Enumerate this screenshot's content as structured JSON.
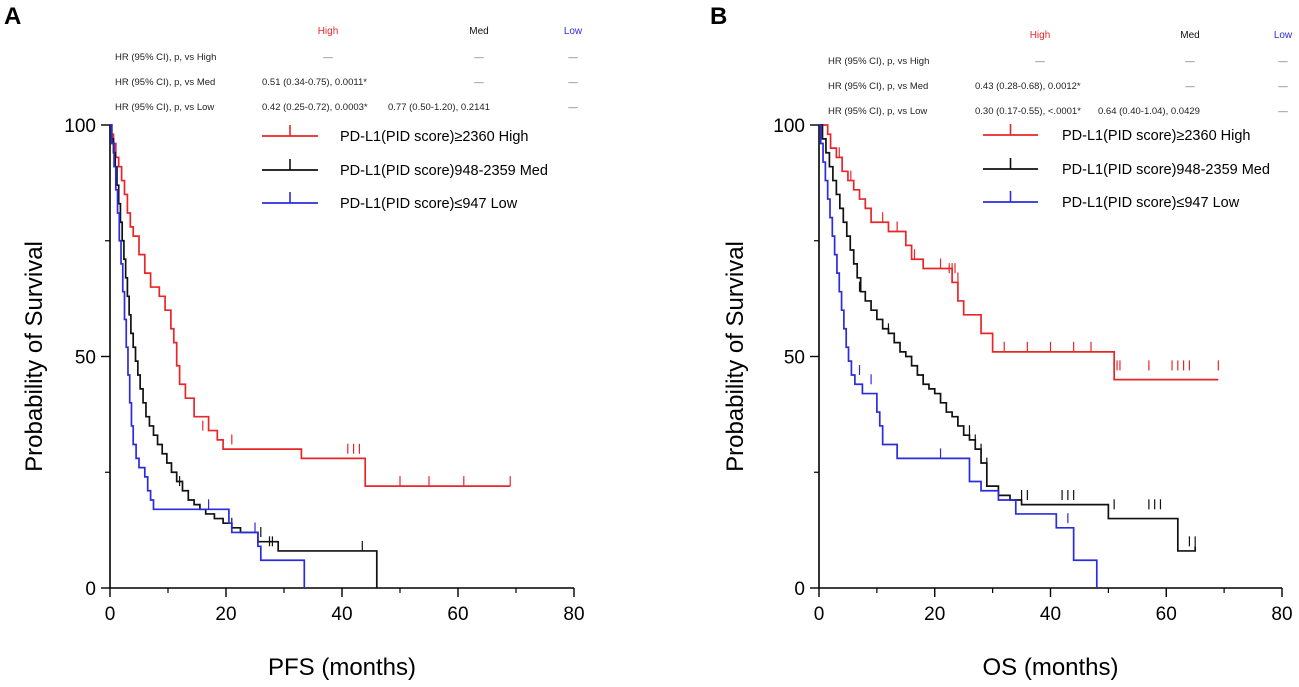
{
  "chart_data": [
    {
      "type": "line",
      "subtype": "kaplan-meier",
      "panel_label": "A",
      "xlabel": "PFS (months)",
      "ylabel": "Probability of Survival",
      "xlim": [
        0,
        80
      ],
      "ylim": [
        0,
        100
      ],
      "xticks": [
        "0",
        "20",
        "40",
        "60",
        "80"
      ],
      "yticks": [
        "0",
        "50",
        "100"
      ],
      "hr_table": {
        "columns": [
          "High",
          "Med",
          "Low"
        ],
        "rows": [
          {
            "label": "HR (95% CI), p, vs High",
            "cells": [
              "—",
              "—",
              "—"
            ]
          },
          {
            "label": "HR (95% CI), p, vs Med",
            "cells": [
              "0.51 (0.34-0.75), 0.0011*",
              "—",
              "—"
            ]
          },
          {
            "label": "HR (95% CI), p, vs Low",
            "cells": [
              "0.42 (0.25-0.72), 0.0003*",
              "0.77 (0.50-1.20), 0.2141",
              "—"
            ]
          }
        ]
      },
      "series": [
        {
          "name": "PD-L1(PID score)≥2360 High",
          "color": "#e8262a",
          "steps": [
            [
              0,
              100
            ],
            [
              0.3,
              98
            ],
            [
              0.6,
              96
            ],
            [
              1,
              93
            ],
            [
              1.5,
              91
            ],
            [
              2,
              88
            ],
            [
              2.5,
              85
            ],
            [
              3,
              81
            ],
            [
              3.5,
              78
            ],
            [
              4,
              76
            ],
            [
              5,
              72
            ],
            [
              6,
              68
            ],
            [
              7,
              65
            ],
            [
              8.5,
              63
            ],
            [
              9.5,
              60
            ],
            [
              10.5,
              56
            ],
            [
              11,
              53
            ],
            [
              11.5,
              48
            ],
            [
              12,
              44
            ],
            [
              13,
              41
            ],
            [
              14.5,
              37
            ],
            [
              17,
              34
            ],
            [
              18.5,
              32
            ],
            [
              19.5,
              30
            ],
            [
              33,
              28
            ],
            [
              44,
              22
            ],
            [
              69,
              22
            ]
          ],
          "censor": [
            [
              16,
              34
            ],
            [
              21,
              31
            ],
            [
              41,
              29
            ],
            [
              42,
              29
            ],
            [
              43,
              29
            ],
            [
              50,
              22
            ],
            [
              55,
              22
            ],
            [
              61,
              22
            ],
            [
              69,
              22
            ]
          ]
        },
        {
          "name": "PD-L1(PID score)948-2359 Med",
          "color": "#111111",
          "steps": [
            [
              0,
              100
            ],
            [
              0.3,
              97
            ],
            [
              0.6,
              94
            ],
            [
              0.9,
              91
            ],
            [
              1.2,
              87
            ],
            [
              1.5,
              83
            ],
            [
              1.8,
              79
            ],
            [
              2.1,
              75
            ],
            [
              2.4,
              71
            ],
            [
              2.7,
              67
            ],
            [
              3,
              63
            ],
            [
              3.3,
              59
            ],
            [
              3.6,
              55
            ],
            [
              4,
              52
            ],
            [
              4.4,
              49
            ],
            [
              4.8,
              46
            ],
            [
              5.2,
              43
            ],
            [
              5.7,
              40
            ],
            [
              6.2,
              37
            ],
            [
              6.8,
              35
            ],
            [
              7.5,
              33
            ],
            [
              8.2,
              31
            ],
            [
              9,
              29
            ],
            [
              9.8,
              27
            ],
            [
              10.6,
              25
            ],
            [
              11.5,
              23
            ],
            [
              12.5,
              21
            ],
            [
              13.5,
              19
            ],
            [
              14.5,
              18
            ],
            [
              15.5,
              17
            ],
            [
              16.5,
              16
            ],
            [
              18,
              15
            ],
            [
              19.5,
              14
            ],
            [
              21,
              13
            ],
            [
              22.5,
              12
            ],
            [
              25.5,
              10
            ],
            [
              29,
              8
            ],
            [
              46,
              0
            ]
          ],
          "censor": [
            [
              12,
              22
            ],
            [
              21,
              13
            ],
            [
              26,
              11
            ],
            [
              27.5,
              9
            ],
            [
              28,
              9
            ],
            [
              43.5,
              8
            ]
          ]
        },
        {
          "name": "PD-L1(PID score)≤947 Low",
          "color": "#2b2be0",
          "steps": [
            [
              0,
              100
            ],
            [
              0.3,
              96
            ],
            [
              0.7,
              91
            ],
            [
              1,
              86
            ],
            [
              1.3,
              81
            ],
            [
              1.6,
              75
            ],
            [
              1.9,
              70
            ],
            [
              2.2,
              64
            ],
            [
              2.5,
              58
            ],
            [
              2.8,
              52
            ],
            [
              3.1,
              46
            ],
            [
              3.4,
              40
            ],
            [
              3.7,
              35
            ],
            [
              4,
              31
            ],
            [
              4.5,
              28
            ],
            [
              5,
              26
            ],
            [
              6,
              24
            ],
            [
              6.5,
              21
            ],
            [
              7,
              19
            ],
            [
              7.5,
              17
            ],
            [
              8.5,
              17
            ],
            [
              20.5,
              14
            ],
            [
              21,
              12
            ],
            [
              25.5,
              9
            ],
            [
              26,
              6
            ],
            [
              33.5,
              0
            ]
          ],
          "censor": [
            [
              17,
              17
            ],
            [
              25,
              12
            ]
          ]
        }
      ]
    },
    {
      "type": "line",
      "subtype": "kaplan-meier",
      "panel_label": "B",
      "xlabel": "OS (months)",
      "ylabel": "Probability of Survival",
      "xlim": [
        0,
        80
      ],
      "ylim": [
        0,
        100
      ],
      "xticks": [
        "0",
        "20",
        "40",
        "60",
        "80"
      ],
      "yticks": [
        "0",
        "50",
        "100"
      ],
      "hr_table": {
        "columns": [
          "High",
          "Med",
          "Low"
        ],
        "rows": [
          {
            "label": "HR (95% CI), p, vs High",
            "cells": [
              "—",
              "—",
              "—"
            ]
          },
          {
            "label": "HR (95% CI), p, vs Med",
            "cells": [
              "0.43 (0.28-0.68), 0.0012*",
              "—",
              "—"
            ]
          },
          {
            "label": "HR (95% CI), p, vs Low",
            "cells": [
              "0.30 (0.17-0.55), <.0001*",
              "0.64 (0.40-1.04), 0.0429",
              "—"
            ]
          }
        ]
      },
      "series": [
        {
          "name": "PD-L1(PID score)≥2360 High",
          "color": "#e8262a",
          "steps": [
            [
              0,
              100
            ],
            [
              1.5,
              98
            ],
            [
              2,
              95
            ],
            [
              3,
              93
            ],
            [
              4,
              90
            ],
            [
              5,
              88
            ],
            [
              6,
              86
            ],
            [
              7,
              84
            ],
            [
              8,
              82
            ],
            [
              9,
              79
            ],
            [
              12,
              77
            ],
            [
              15,
              74
            ],
            [
              16,
              71
            ],
            [
              18,
              69
            ],
            [
              23,
              66
            ],
            [
              24,
              62
            ],
            [
              25,
              59
            ],
            [
              28,
              55
            ],
            [
              30,
              51
            ],
            [
              51,
              45
            ],
            [
              69,
              45
            ]
          ],
          "censor": [
            [
              3.5,
              93
            ],
            [
              5.5,
              88
            ],
            [
              8,
              82
            ],
            [
              11,
              79
            ],
            [
              13.5,
              77
            ],
            [
              15,
              74
            ],
            [
              16.5,
              71
            ],
            [
              21,
              69
            ],
            [
              22.5,
              68
            ],
            [
              23,
              68
            ],
            [
              23.5,
              68
            ],
            [
              24,
              66
            ],
            [
              32,
              51
            ],
            [
              36,
              51
            ],
            [
              40,
              51
            ],
            [
              44,
              51
            ],
            [
              47,
              51
            ],
            [
              51.5,
              47
            ],
            [
              52,
              47
            ],
            [
              57,
              47
            ],
            [
              61,
              47
            ],
            [
              62,
              47
            ],
            [
              63,
              47
            ],
            [
              64,
              47
            ],
            [
              69,
              47
            ]
          ]
        },
        {
          "name": "PD-L1(PID score)948-2359 Med",
          "color": "#111111",
          "steps": [
            [
              0,
              100
            ],
            [
              0.6,
              97
            ],
            [
              1.2,
              94
            ],
            [
              1.8,
              91
            ],
            [
              2.4,
              88
            ],
            [
              3,
              85
            ],
            [
              3.6,
              82
            ],
            [
              4.2,
              79
            ],
            [
              4.8,
              76
            ],
            [
              5.4,
              73
            ],
            [
              6,
              70
            ],
            [
              6.6,
              67
            ],
            [
              7.2,
              64
            ],
            [
              8,
              62
            ],
            [
              9,
              60
            ],
            [
              10,
              58
            ],
            [
              11,
              56
            ],
            [
              12,
              55
            ],
            [
              13,
              53
            ],
            [
              14,
              51
            ],
            [
              15,
              50
            ],
            [
              16,
              48
            ],
            [
              17,
              46
            ],
            [
              18,
              44
            ],
            [
              19,
              43
            ],
            [
              20,
              42
            ],
            [
              21,
              40
            ],
            [
              22,
              38
            ],
            [
              23,
              37
            ],
            [
              24,
              35
            ],
            [
              25,
              33
            ],
            [
              26,
              32
            ],
            [
              27,
              30
            ],
            [
              28,
              27
            ],
            [
              29,
              22
            ],
            [
              31,
              20
            ],
            [
              33,
              19
            ],
            [
              35,
              18
            ],
            [
              50,
              15
            ],
            [
              62,
              8
            ],
            [
              65,
              9
            ]
          ],
          "censor": [
            [
              7,
              64
            ],
            [
              12,
              55
            ],
            [
              18,
              44
            ],
            [
              22,
              38
            ],
            [
              24,
              35
            ],
            [
              26,
              33
            ],
            [
              27,
              31
            ],
            [
              28,
              29
            ],
            [
              29,
              26
            ],
            [
              35,
              19
            ],
            [
              36,
              19
            ],
            [
              42,
              19
            ],
            [
              43,
              19
            ],
            [
              44,
              19
            ],
            [
              51,
              17
            ],
            [
              57,
              17
            ],
            [
              58,
              17
            ],
            [
              59,
              17
            ],
            [
              64,
              9
            ],
            [
              65,
              9
            ]
          ]
        },
        {
          "name": "PD-L1(PID score)≤947 Low",
          "color": "#2b2be0",
          "steps": [
            [
              0,
              100
            ],
            [
              0.3,
              96
            ],
            [
              0.7,
              92
            ],
            [
              1.1,
              88
            ],
            [
              1.5,
              84
            ],
            [
              1.9,
              80
            ],
            [
              2.3,
              76
            ],
            [
              2.7,
              72
            ],
            [
              3.1,
              68
            ],
            [
              3.5,
              64
            ],
            [
              3.9,
              60
            ],
            [
              4.3,
              56
            ],
            [
              4.7,
              52
            ],
            [
              5.1,
              49
            ],
            [
              5.6,
              46
            ],
            [
              6.2,
              44
            ],
            [
              7.5,
              42
            ],
            [
              10,
              38
            ],
            [
              10.5,
              35
            ],
            [
              11,
              31
            ],
            [
              13.5,
              28
            ],
            [
              26,
              23
            ],
            [
              28,
              21
            ],
            [
              31,
              19
            ],
            [
              34,
              16
            ],
            [
              41,
              13
            ],
            [
              44,
              6
            ],
            [
              48,
              0
            ]
          ],
          "censor": [
            [
              7,
              46
            ],
            [
              9,
              44
            ],
            [
              21,
              28
            ],
            [
              43,
              14
            ]
          ]
        }
      ]
    }
  ]
}
